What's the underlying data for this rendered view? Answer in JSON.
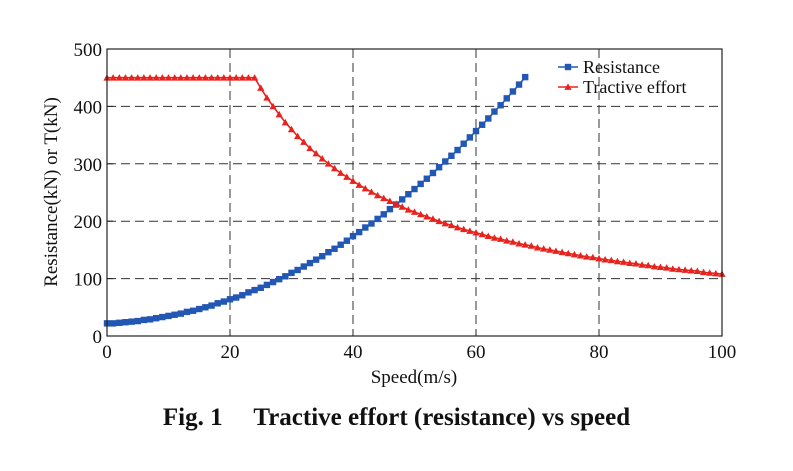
{
  "chart_data": {
    "type": "line",
    "title": "",
    "xlabel": "Speed(m/s)",
    "ylabel": "Resistance(kN) or T(kN)",
    "xlim": [
      0,
      100
    ],
    "ylim": [
      0,
      500
    ],
    "xticks": [
      "0",
      "20",
      "40",
      "60",
      "80",
      "100"
    ],
    "yticks": [
      "0",
      "100",
      "200",
      "300",
      "400",
      "500"
    ],
    "grid": true,
    "legend_position": "top-right",
    "series": [
      {
        "name": "Resistance",
        "color": "#2257b3",
        "marker": "square",
        "x": [
          0,
          1,
          2,
          3,
          4,
          5,
          6,
          7,
          8,
          9,
          10,
          11,
          12,
          13,
          14,
          15,
          16,
          17,
          18,
          19,
          20,
          21,
          22,
          23,
          24,
          25,
          26,
          27,
          28,
          29,
          30,
          31,
          32,
          33,
          34,
          35,
          36,
          37,
          38,
          39,
          40,
          41,
          42,
          43,
          44,
          45,
          46,
          47,
          48,
          49,
          50,
          51,
          52,
          53,
          54,
          55,
          56,
          57,
          58,
          59,
          60,
          61,
          62,
          63,
          64,
          65,
          66,
          67,
          68
        ],
        "values": [
          22,
          22,
          23,
          24,
          25,
          26,
          28,
          29,
          31,
          33,
          35,
          37,
          39,
          42,
          44,
          47,
          50,
          53,
          57,
          60,
          64,
          67,
          71,
          76,
          80,
          84,
          89,
          94,
          99,
          104,
          110,
          115,
          121,
          127,
          133,
          139,
          146,
          152,
          159,
          166,
          174,
          181,
          189,
          196,
          204,
          212,
          221,
          229,
          238,
          247,
          256,
          265,
          274,
          284,
          294,
          304,
          314,
          324,
          335,
          346,
          357,
          368,
          379,
          391,
          402,
          414,
          426,
          438,
          451
        ]
      },
      {
        "name": "Tractive effort",
        "color": "#e8221c",
        "marker": "triangle",
        "x": [
          0,
          1,
          2,
          3,
          4,
          5,
          6,
          7,
          8,
          9,
          10,
          11,
          12,
          13,
          14,
          15,
          16,
          17,
          18,
          19,
          20,
          21,
          22,
          23,
          24,
          25,
          26,
          27,
          28,
          29,
          30,
          31,
          32,
          33,
          34,
          35,
          36,
          37,
          38,
          39,
          40,
          41,
          42,
          43,
          44,
          45,
          46,
          47,
          48,
          49,
          50,
          51,
          52,
          53,
          54,
          55,
          56,
          57,
          58,
          59,
          60,
          61,
          62,
          63,
          64,
          65,
          66,
          67,
          68,
          69,
          70,
          71,
          72,
          73,
          74,
          75,
          76,
          77,
          78,
          79,
          80,
          81,
          82,
          83,
          84,
          85,
          86,
          87,
          88,
          89,
          90,
          91,
          92,
          93,
          94,
          95,
          96,
          97,
          98,
          99,
          100
        ],
        "values": [
          450,
          450,
          450,
          450,
          450,
          450,
          450,
          450,
          450,
          450,
          450,
          450,
          450,
          450,
          450,
          450,
          450,
          450,
          450,
          450,
          450,
          450,
          450,
          450,
          450,
          432,
          415,
          400,
          386,
          372,
          360,
          348,
          338,
          327,
          318,
          309,
          300,
          292,
          284,
          277,
          270,
          263,
          257,
          251,
          245,
          240,
          235,
          230,
          225,
          220,
          216,
          212,
          208,
          204,
          200,
          196,
          193,
          189,
          186,
          183,
          180,
          177,
          174,
          171,
          169,
          166,
          164,
          161,
          159,
          157,
          154,
          152,
          150,
          148,
          146,
          144,
          142,
          140,
          138,
          137,
          135,
          133,
          132,
          130,
          129,
          127,
          126,
          124,
          123,
          121,
          120,
          119,
          117,
          116,
          115,
          114,
          113,
          111,
          110,
          109,
          108
        ]
      }
    ],
    "caption": "Fig. 1     Tractive effort (resistance) vs speed"
  }
}
